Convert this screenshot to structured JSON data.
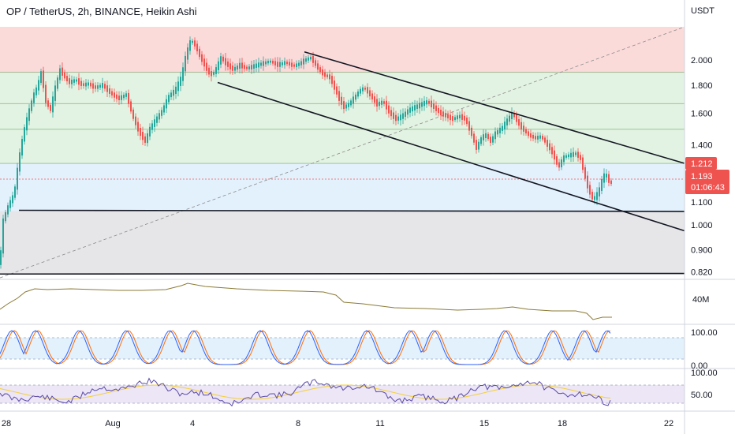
{
  "header": {
    "title": "OP / TetherUS, 2h, BINANCE, Heikin Ashi"
  },
  "price_axis": {
    "currency": "USDT",
    "ticks": [
      "2.000",
      "1.800",
      "1.600",
      "1.400",
      "1.100",
      "1.000",
      "0.900",
      "0.820"
    ],
    "last_price": "1.212",
    "current_price": "1.193",
    "countdown": "01:06:43"
  },
  "volume_panel": {
    "tick": "40M"
  },
  "stoch_panel": {
    "ticks": [
      "100.00",
      "0.00"
    ]
  },
  "rsi_panel": {
    "ticks": [
      "100.00",
      "50.00"
    ]
  },
  "time_axis": {
    "ticks": [
      "28",
      "Aug",
      "4",
      "8",
      "11",
      "15",
      "18",
      "22"
    ]
  },
  "colors": {
    "up": "#26a69a",
    "down": "#ef5350",
    "zone_red": "#fbdada",
    "zone_green": "#e3f3e3",
    "zone_blue": "#e3f1fd",
    "zone_gray": "#e6e6e9",
    "volume_line": "#8b7a36",
    "stoch_k": "#2962ff",
    "stoch_d": "#ff6d00",
    "rsi_line": "#5b4aa6",
    "rsi_ma": "#f5d033"
  },
  "chart_data": {
    "type": "candlestick",
    "title": "OP / TetherUS, 2h, BINANCE, Heikin Ashi",
    "y_scale": "log",
    "ylim": [
      0.795,
      2.3
    ],
    "x_ticks": [
      "28",
      "Aug",
      "4",
      "8",
      "11",
      "15",
      "18",
      "22"
    ],
    "y_ticks": [
      2.0,
      1.8,
      1.6,
      1.4,
      1.1,
      1.0,
      0.9,
      0.82
    ],
    "path_points": [
      [
        0,
        0.85
      ],
      [
        4,
        1.02
      ],
      [
        10,
        1.08
      ],
      [
        18,
        1.14
      ],
      [
        24,
        1.32
      ],
      [
        30,
        1.48
      ],
      [
        36,
        1.6
      ],
      [
        42,
        1.72
      ],
      [
        48,
        1.8
      ],
      [
        52,
        1.9
      ],
      [
        58,
        1.68
      ],
      [
        64,
        1.62
      ],
      [
        70,
        1.78
      ],
      [
        76,
        1.92
      ],
      [
        82,
        1.86
      ],
      [
        88,
        1.82
      ],
      [
        96,
        1.84
      ],
      [
        104,
        1.8
      ],
      [
        112,
        1.81
      ],
      [
        120,
        1.78
      ],
      [
        130,
        1.8
      ],
      [
        140,
        1.74
      ],
      [
        150,
        1.7
      ],
      [
        160,
        1.73
      ],
      [
        168,
        1.58
      ],
      [
        176,
        1.48
      ],
      [
        184,
        1.42
      ],
      [
        190,
        1.5
      ],
      [
        198,
        1.56
      ],
      [
        206,
        1.62
      ],
      [
        214,
        1.72
      ],
      [
        222,
        1.76
      ],
      [
        230,
        1.86
      ],
      [
        236,
        2.05
      ],
      [
        242,
        2.18
      ],
      [
        248,
        2.12
      ],
      [
        254,
        2.02
      ],
      [
        260,
        1.95
      ],
      [
        266,
        1.88
      ],
      [
        272,
        1.9
      ],
      [
        280,
        2.02
      ],
      [
        288,
        1.96
      ],
      [
        296,
        1.92
      ],
      [
        304,
        1.96
      ],
      [
        312,
        1.93
      ],
      [
        322,
        1.95
      ],
      [
        332,
        1.97
      ],
      [
        342,
        1.99
      ],
      [
        352,
        1.96
      ],
      [
        362,
        1.98
      ],
      [
        372,
        1.95
      ],
      [
        380,
        1.97
      ],
      [
        386,
        2.0
      ],
      [
        394,
        2.02
      ],
      [
        402,
        1.94
      ],
      [
        410,
        1.88
      ],
      [
        418,
        1.86
      ],
      [
        424,
        1.78
      ],
      [
        430,
        1.7
      ],
      [
        436,
        1.64
      ],
      [
        442,
        1.66
      ],
      [
        448,
        1.7
      ],
      [
        456,
        1.76
      ],
      [
        462,
        1.78
      ],
      [
        470,
        1.72
      ],
      [
        478,
        1.66
      ],
      [
        486,
        1.68
      ],
      [
        494,
        1.6
      ],
      [
        502,
        1.56
      ],
      [
        510,
        1.58
      ],
      [
        518,
        1.62
      ],
      [
        526,
        1.64
      ],
      [
        534,
        1.66
      ],
      [
        542,
        1.68
      ],
      [
        550,
        1.64
      ],
      [
        558,
        1.6
      ],
      [
        566,
        1.58
      ],
      [
        574,
        1.56
      ],
      [
        582,
        1.58
      ],
      [
        590,
        1.56
      ],
      [
        598,
        1.46
      ],
      [
        604,
        1.38
      ],
      [
        610,
        1.44
      ],
      [
        616,
        1.46
      ],
      [
        622,
        1.42
      ],
      [
        628,
        1.47
      ],
      [
        636,
        1.5
      ],
      [
        644,
        1.56
      ],
      [
        650,
        1.6
      ],
      [
        656,
        1.54
      ],
      [
        662,
        1.5
      ],
      [
        670,
        1.46
      ],
      [
        678,
        1.44
      ],
      [
        686,
        1.45
      ],
      [
        694,
        1.4
      ],
      [
        702,
        1.34
      ],
      [
        708,
        1.27
      ],
      [
        714,
        1.33
      ],
      [
        722,
        1.34
      ],
      [
        730,
        1.35
      ],
      [
        736,
        1.32
      ],
      [
        740,
        1.25
      ],
      [
        746,
        1.16
      ],
      [
        752,
        1.11
      ],
      [
        756,
        1.13
      ],
      [
        760,
        1.16
      ],
      [
        764,
        1.22
      ],
      [
        768,
        1.24
      ],
      [
        772,
        1.2
      ],
      [
        776,
        1.19
      ]
    ],
    "zones": [
      {
        "from": 1.892,
        "to": 2.3,
        "color": "red"
      },
      {
        "from": 1.295,
        "to": 1.892,
        "color": "green"
      },
      {
        "from": 1.06,
        "to": 1.295,
        "color": "blue"
      },
      {
        "from": 0.815,
        "to": 1.06,
        "color": "gray"
      }
    ],
    "hlines": [
      1.9,
      1.665,
      1.495,
      1.295,
      1.212
    ],
    "support_lines": [
      {
        "x1": 24,
        "y1": 1.063,
        "x2": 868,
        "y2": 1.058
      },
      {
        "x1": 0,
        "y1": 0.813,
        "x2": 868,
        "y2": 0.815
      }
    ],
    "channel": [
      {
        "x1": 386,
        "y1": 2.07,
        "x2": 868,
        "y2": 1.295
      },
      {
        "x1": 276,
        "y1": 1.82,
        "x2": 868,
        "y2": 0.975
      }
    ],
    "trend_dashed": {
      "x1": 0,
      "y1": 0.8,
      "x2": 868,
      "y2": 2.3
    }
  }
}
